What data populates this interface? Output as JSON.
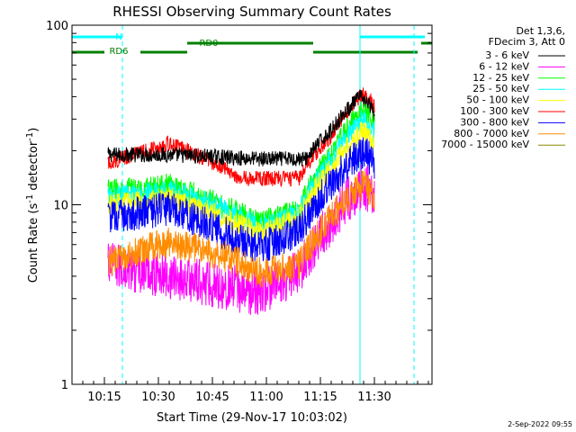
{
  "chart_data": {
    "type": "line",
    "title": "RHESSI Observing Summary Count Rates",
    "xlabel": "Start Time (29-Nov-17 10:03:02)",
    "ylabel_main": "Count Rate (s",
    "ylabel_sup1": "-1",
    "ylabel_mid": " detector",
    "ylabel_sup2": "-1",
    "ylabel_end": ")",
    "yscale": "log",
    "ylim": [
      1,
      100
    ],
    "xlim_min": [
      3.0,
      103.0
    ],
    "x_ticks": [
      {
        "min": 12,
        "label": "10:15"
      },
      {
        "min": 27,
        "label": "10:30"
      },
      {
        "min": 42,
        "label": "10:45"
      },
      {
        "min": 57,
        "label": "11:00"
      },
      {
        "min": 72,
        "label": "11:15"
      },
      {
        "min": 87,
        "label": "11:30"
      }
    ],
    "y_ticks": [
      {
        "value": 1,
        "label": "1"
      },
      {
        "value": 10,
        "label": "10"
      },
      {
        "value": 100,
        "label": "100"
      }
    ],
    "legend_header": [
      "Det 1,3,6,",
      "FDecim 3, Att 0"
    ],
    "legend_position": "right",
    "series": [
      {
        "name": "3 - 6 keV",
        "color": "#000000",
        "x": [
          13,
          30,
          55,
          68,
          75,
          83,
          86,
          87
        ],
        "y": [
          19,
          19,
          18,
          18,
          26,
          40,
          35,
          30
        ]
      },
      {
        "name": "6 - 12 keV",
        "color": "#ff00ff",
        "x": [
          13,
          30,
          55,
          66,
          74,
          84,
          87
        ],
        "y": [
          4.6,
          4.0,
          3.2,
          4.2,
          7.5,
          13,
          11
        ]
      },
      {
        "name": "12 - 25 keV",
        "color": "#00ff00",
        "x": [
          13,
          30,
          45,
          55,
          66,
          75,
          84,
          87
        ],
        "y": [
          12,
          13,
          10,
          8,
          9.5,
          19,
          34,
          28
        ]
      },
      {
        "name": "25 - 50 keV",
        "color": "#00ffff",
        "x": [
          13,
          30,
          45,
          55,
          66,
          75,
          84,
          87
        ],
        "y": [
          11,
          12,
          9.5,
          7.5,
          9,
          18,
          30,
          25
        ]
      },
      {
        "name": "50 - 100 keV",
        "color": "#ffff00",
        "x": [
          13,
          30,
          45,
          55,
          66,
          75,
          84,
          87
        ],
        "y": [
          10,
          11,
          8.5,
          7,
          8.5,
          16,
          26,
          21
        ]
      },
      {
        "name": "100 - 300 keV",
        "color": "#ff0000",
        "x": [
          13,
          30,
          40,
          50,
          66,
          75,
          84,
          87
        ],
        "y": [
          17,
          22,
          18,
          14,
          14,
          24,
          42,
          36
        ]
      },
      {
        "name": "300 - 800 keV",
        "color": "#0000ff",
        "x": [
          13,
          30,
          45,
          55,
          66,
          75,
          84,
          87
        ],
        "y": [
          8.5,
          9.5,
          7,
          5.7,
          7,
          13,
          20,
          17
        ]
      },
      {
        "name": "800 - 7000 keV",
        "color": "#ff8c00",
        "x": [
          13,
          30,
          45,
          55,
          66,
          75,
          84,
          87
        ],
        "y": [
          4.8,
          6.2,
          5.2,
          4.2,
          4.6,
          8.5,
          13,
          11
        ]
      },
      {
        "name": "7000 - 15000 keV",
        "color": "#8b8b00",
        "x": [
          13,
          30,
          55,
          75,
          85
        ],
        "y": [
          0,
          0,
          0,
          0,
          0
        ]
      }
    ],
    "status_bars": [
      {
        "label": "N",
        "color": "#00ffff",
        "segments": [
          [
            3,
            17
          ],
          [
            83,
            101
          ]
        ]
      },
      {
        "label": "RD0",
        "color": "#008000",
        "segments": [
          [
            35,
            70
          ],
          [
            100,
            103
          ]
        ]
      },
      {
        "label": "RD6",
        "color": "#008000",
        "segments": [
          [
            3,
            12
          ],
          [
            22,
            35
          ],
          [
            70,
            99
          ]
        ]
      }
    ],
    "markers": [
      {
        "style": "solid",
        "color": "#00ffff",
        "x": 3
      },
      {
        "style": "dashed",
        "color": "#00ffff",
        "x": 17
      },
      {
        "style": "solid",
        "color": "#00ffff",
        "x": 83
      },
      {
        "style": "dashed",
        "color": "#00ffff",
        "x": 98
      }
    ]
  },
  "timestamp": "2-Sep-2022 09:55"
}
